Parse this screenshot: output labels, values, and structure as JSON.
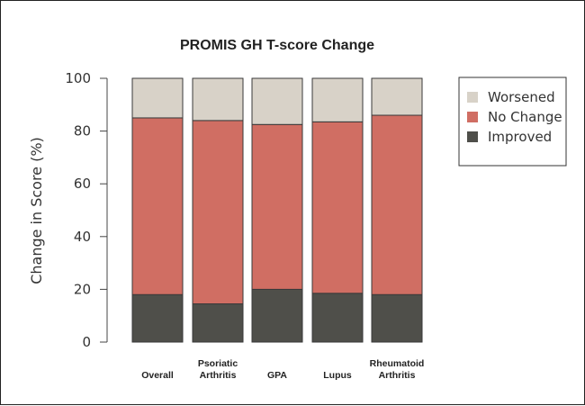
{
  "chart_data": {
    "type": "bar",
    "stacked": true,
    "title": "PROMIS GH T-score Change",
    "ylabel": "Change in Score (%)",
    "xlabel": "",
    "ylim": [
      0,
      100
    ],
    "yticks": [
      0,
      20,
      40,
      60,
      80,
      100
    ],
    "categories": [
      [
        "Overall"
      ],
      [
        "Psoriatic",
        "Arthritis"
      ],
      [
        "GPA"
      ],
      [
        "Lupus"
      ],
      [
        "Rheumatoid",
        "Arthritis"
      ]
    ],
    "series": [
      {
        "name": "Improved",
        "color": "#4f4f4a",
        "values": [
          18,
          14.5,
          20,
          18.5,
          18
        ]
      },
      {
        "name": "No Change",
        "color": "#d06e63",
        "values": [
          67,
          69.5,
          62.5,
          65,
          68
        ]
      },
      {
        "name": "Worsened",
        "color": "#d8d2c8",
        "values": [
          15,
          16,
          17.5,
          16.5,
          14
        ]
      }
    ],
    "legend": {
      "position": "right",
      "order": [
        "Worsened",
        "No Change",
        "Improved"
      ]
    },
    "grid": false
  }
}
